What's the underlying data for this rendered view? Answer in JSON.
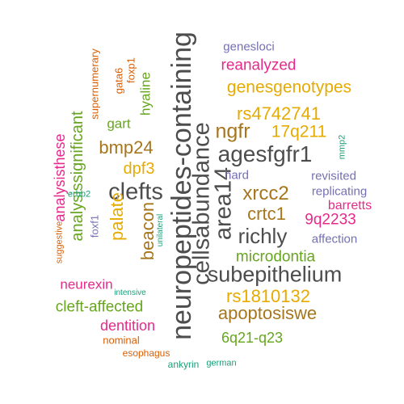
{
  "colors": {
    "gray": "#4d4d4d",
    "gold": "#e6ab02",
    "olive": "#a6761d",
    "green": "#66a61e",
    "magenta": "#e7298a",
    "purple": "#7570b3",
    "orange": "#d95f02",
    "teal": "#1b9e77"
  },
  "words": [
    {
      "text": "neuropeptides-containing",
      "color": "gray"
    },
    {
      "text": "cellsabundance",
      "color": "gray"
    },
    {
      "text": "area14",
      "color": "gray"
    },
    {
      "text": "clefts",
      "color": "gray"
    },
    {
      "text": "agesfgfr1",
      "color": "gray"
    },
    {
      "text": "subepithelium",
      "color": "gray"
    },
    {
      "text": "richly",
      "color": "gray"
    },
    {
      "text": "ngfr",
      "color": "olive"
    },
    {
      "text": "genesgenotypes",
      "color": "gold"
    },
    {
      "text": "rs4742741",
      "color": "gold"
    },
    {
      "text": "xrcc2",
      "color": "olive"
    },
    {
      "text": "crtc1",
      "color": "olive"
    },
    {
      "text": "bmp24",
      "color": "olive"
    },
    {
      "text": "apoptosiswe",
      "color": "olive"
    },
    {
      "text": "rs1810132",
      "color": "gold"
    },
    {
      "text": "17q211",
      "color": "gold"
    },
    {
      "text": "palate",
      "color": "gold"
    },
    {
      "text": "beacon",
      "color": "olive"
    },
    {
      "text": "dpf3",
      "color": "gold"
    },
    {
      "text": "analysissignificant",
      "color": "green"
    },
    {
      "text": "microdontia",
      "color": "green"
    },
    {
      "text": "cleft-affected",
      "color": "green"
    },
    {
      "text": "6q21-q23",
      "color": "green"
    },
    {
      "text": "reanalyzed",
      "color": "magenta"
    },
    {
      "text": "9q2233",
      "color": "magenta"
    },
    {
      "text": "analysisthese",
      "color": "magenta"
    },
    {
      "text": "dentition",
      "color": "magenta"
    },
    {
      "text": "neurexin",
      "color": "magenta"
    },
    {
      "text": "barretts",
      "color": "magenta"
    },
    {
      "text": "hyaline",
      "color": "green"
    },
    {
      "text": "gart",
      "color": "green"
    },
    {
      "text": "genesloci",
      "color": "purple"
    },
    {
      "text": "revisited",
      "color": "purple"
    },
    {
      "text": "replicating",
      "color": "purple"
    },
    {
      "text": "affection",
      "color": "purple"
    },
    {
      "text": "hard",
      "color": "purple"
    },
    {
      "text": "foxf1",
      "color": "purple"
    },
    {
      "text": "supernumerary",
      "color": "orange"
    },
    {
      "text": "gata6",
      "color": "orange"
    },
    {
      "text": "foxp1",
      "color": "orange"
    },
    {
      "text": "suggestive",
      "color": "orange"
    },
    {
      "text": "nominal",
      "color": "orange"
    },
    {
      "text": "esophagus",
      "color": "orange"
    },
    {
      "text": "erbb2",
      "color": "teal"
    },
    {
      "text": "unilateral",
      "color": "teal"
    },
    {
      "text": "mmp2",
      "color": "teal"
    },
    {
      "text": "intensive",
      "color": "teal"
    },
    {
      "text": "ankyrin",
      "color": "teal"
    },
    {
      "text": "german",
      "color": "teal"
    }
  ]
}
